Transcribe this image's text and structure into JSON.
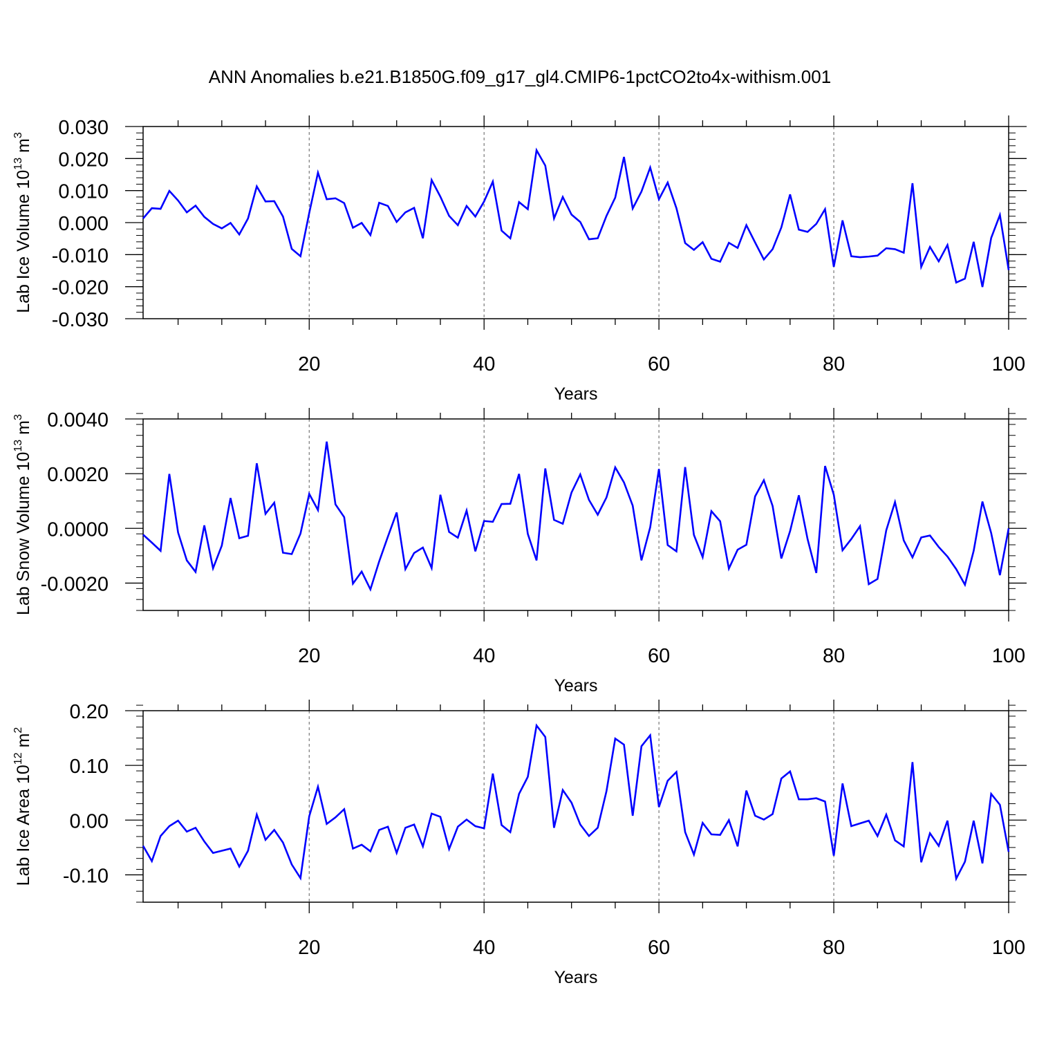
{
  "title": "ANN Anomalies b.e21.B1850G.f09_g17_gl4.CMIP6-1pctCO2to4x-withism.001",
  "chart_data": [
    {
      "type": "line",
      "xlabel": "Years",
      "ylabel": {
        "text": "Lab Ice Volume 10",
        "exp": "13",
        "unit": " m",
        "unit_exp": "3"
      },
      "xlim": [
        1,
        100
      ],
      "ylim": [
        -0.03,
        0.03
      ],
      "x_ticks": [
        20,
        40,
        60,
        80,
        100
      ],
      "x_tick_labels": [
        "20",
        "40",
        "60",
        "80",
        "100"
      ],
      "y_ticks": [
        -0.03,
        -0.02,
        -0.01,
        0.0,
        0.01,
        0.02,
        0.03
      ],
      "y_tick_labels": [
        "-0.030",
        "-0.020",
        "-0.010",
        "0.000",
        "0.010",
        "0.020",
        "0.030"
      ],
      "y_minor_step": 0.002,
      "grid": "vertical dashed at major x ticks",
      "color": "#0000ff",
      "series": [
        {
          "values": [
            0.0013,
            0.0045,
            0.0043,
            0.0099,
            0.0069,
            0.0032,
            0.0053,
            0.0018,
            -0.0004,
            -0.0018,
            -0.0001,
            -0.0037,
            0.0013,
            0.0113,
            0.0066,
            0.0067,
            0.0019,
            -0.0082,
            -0.0105,
            0.003,
            0.0156,
            0.0073,
            0.0076,
            0.0061,
            -0.0016,
            -0.0001,
            -0.0039,
            0.0062,
            0.0052,
            0.0002,
            0.0032,
            0.0046,
            -0.0049,
            0.0133,
            0.0081,
            0.0021,
            -0.0008,
            0.0052,
            0.0019,
            0.0066,
            0.0128,
            -0.0025,
            -0.0049,
            0.0064,
            0.0042,
            0.0226,
            0.0178,
            0.0013,
            0.008,
            0.0025,
            0.0002,
            -0.0052,
            -0.0049,
            0.0021,
            0.0078,
            0.0205,
            0.0044,
            0.0097,
            0.0172,
            0.0073,
            0.0125,
            0.0045,
            -0.0064,
            -0.0085,
            -0.0061,
            -0.0113,
            -0.0122,
            -0.0063,
            -0.0079,
            -0.0008,
            -0.0062,
            -0.0115,
            -0.0083,
            -0.0015,
            0.0088,
            -0.0022,
            -0.0029,
            -0.0004,
            0.0042,
            -0.0138,
            0.0007,
            -0.0105,
            -0.0108,
            -0.0106,
            -0.0103,
            -0.008,
            -0.0083,
            -0.0094,
            0.0123,
            -0.0138,
            -0.0076,
            -0.0121,
            -0.007,
            -0.0187,
            -0.0175,
            -0.006,
            -0.0201,
            -0.0048,
            0.0024,
            -0.0148
          ]
        }
      ]
    },
    {
      "type": "line",
      "xlabel": "Years",
      "ylabel": {
        "text": "Lab Snow Volume 10",
        "exp": "13",
        "unit": " m",
        "unit_exp": "3"
      },
      "xlim": [
        1,
        100
      ],
      "ylim": [
        -0.003,
        0.004
      ],
      "x_ticks": [
        20,
        40,
        60,
        80,
        100
      ],
      "x_tick_labels": [
        "20",
        "40",
        "60",
        "80",
        "100"
      ],
      "y_ticks": [
        -0.002,
        0.0,
        0.002,
        0.004
      ],
      "y_tick_labels": [
        "-0.0020",
        "0.0000",
        "0.0020",
        "0.0040"
      ],
      "y_minor_step": 0.0004,
      "grid": "vertical dashed at major x ticks",
      "color": "#0000ff",
      "series": [
        {
          "values": [
            -0.00023,
            -0.00052,
            -0.00082,
            0.00199,
            -0.00015,
            -0.00117,
            -0.00159,
            0.00011,
            -0.00146,
            -0.00063,
            0.00111,
            -0.00036,
            -0.00027,
            0.00238,
            0.00053,
            0.00094,
            -0.00089,
            -0.00094,
            -0.00019,
            0.00126,
            0.00067,
            0.00317,
            0.00088,
            0.00041,
            -0.00202,
            -0.00158,
            -0.00223,
            -0.00121,
            -0.0003,
            0.00058,
            -0.00149,
            -0.0009,
            -0.0007,
            -0.00145,
            0.00123,
            -0.00013,
            -0.00034,
            0.00065,
            -0.00084,
            0.00027,
            0.00024,
            0.00089,
            0.0009,
            0.00199,
            -0.0002,
            -0.00117,
            0.00219,
            0.00031,
            0.00017,
            0.00131,
            0.00197,
            0.00104,
            0.0005,
            0.00113,
            0.00223,
            0.00168,
            0.00083,
            -0.00117,
            4e-05,
            0.00217,
            -0.00061,
            -0.00084,
            0.00224,
            -0.00024,
            -0.00105,
            0.00063,
            0.00026,
            -0.00147,
            -0.00078,
            -0.0006,
            0.00117,
            0.00176,
            0.00082,
            -0.0011,
            -0.0001,
            0.00121,
            -0.00039,
            -0.00163,
            0.00228,
            0.00123,
            -0.0008,
            -0.00039,
            8e-05,
            -0.00204,
            -0.00185,
            -7e-05,
            0.00096,
            -0.00044,
            -0.00106,
            -0.00033,
            -0.00026,
            -0.00068,
            -0.00103,
            -0.00149,
            -0.00206,
            -0.00082,
            0.00098,
            -0.00017,
            -0.00171,
            0.0
          ]
        }
      ]
    },
    {
      "type": "line",
      "xlabel": "Years",
      "ylabel": {
        "text": "Lab Ice Area 10",
        "exp": "12",
        "unit": " m",
        "unit_exp": "2"
      },
      "xlim": [
        1,
        100
      ],
      "ylim": [
        -0.15,
        0.2
      ],
      "x_ticks": [
        20,
        40,
        60,
        80,
        100
      ],
      "x_tick_labels": [
        "20",
        "40",
        "60",
        "80",
        "100"
      ],
      "y_ticks": [
        -0.1,
        0.0,
        0.1,
        0.2
      ],
      "y_tick_labels": [
        "-0.10",
        "0.00",
        "0.10",
        "0.20"
      ],
      "y_minor_step": 0.02,
      "grid": "vertical dashed at major x ticks",
      "color": "#0000ff",
      "series": [
        {
          "values": [
            -0.047,
            -0.075,
            -0.029,
            -0.011,
            -0.001,
            -0.021,
            -0.014,
            -0.039,
            -0.06,
            -0.056,
            -0.052,
            -0.085,
            -0.056,
            0.01,
            -0.036,
            -0.018,
            -0.041,
            -0.081,
            -0.106,
            0.007,
            0.061,
            -0.007,
            0.005,
            0.02,
            -0.052,
            -0.045,
            -0.057,
            -0.018,
            -0.012,
            -0.06,
            -0.014,
            -0.008,
            -0.048,
            0.012,
            0.006,
            -0.053,
            -0.012,
            0.001,
            -0.011,
            -0.015,
            0.085,
            -0.009,
            -0.022,
            0.048,
            0.079,
            0.173,
            0.152,
            -0.014,
            0.055,
            0.032,
            -0.008,
            -0.029,
            -0.014,
            0.053,
            0.149,
            0.138,
            0.008,
            0.135,
            0.155,
            0.024,
            0.072,
            0.088,
            -0.022,
            -0.063,
            -0.005,
            -0.026,
            -0.027,
            0.0,
            -0.048,
            0.054,
            0.008,
            0.001,
            0.011,
            0.076,
            0.089,
            0.038,
            0.038,
            0.04,
            0.034,
            -0.065,
            0.067,
            -0.011,
            -0.006,
            -0.001,
            -0.029,
            0.01,
            -0.037,
            -0.048,
            0.106,
            -0.077,
            -0.024,
            -0.047,
            -0.001,
            -0.107,
            -0.076,
            -0.001,
            -0.079,
            0.048,
            0.028,
            -0.058
          ]
        }
      ]
    }
  ]
}
